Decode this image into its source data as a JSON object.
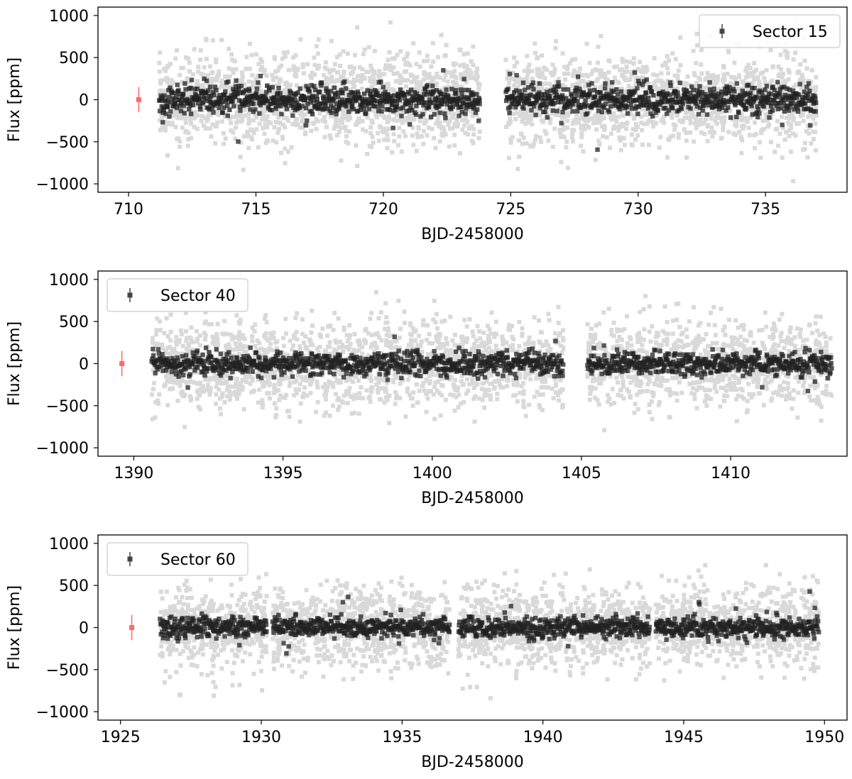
{
  "chart_data": [
    {
      "type": "scatter",
      "xlabel": "BJD-2458000",
      "ylabel": "Flux [ppm]",
      "xlim": [
        708.8,
        738.2
      ],
      "ylim": [
        -1100,
        1100
      ],
      "xticks": [
        710,
        715,
        720,
        725,
        730,
        735
      ],
      "yticks": [
        -1000,
        -500,
        0,
        500,
        1000
      ],
      "legend": {
        "label": "Sector 15",
        "placement": "top-right"
      },
      "segments": [
        [
          711.2,
          723.8
        ],
        [
          724.8,
          737.0
        ]
      ],
      "raw_scatter_ppm": 270,
      "binned_scatter_ppm": 85,
      "binned_count_per_day": 55,
      "error_bar": {
        "x": 710.4,
        "y": 0,
        "yerr": 150
      },
      "colors": {
        "raw": "#d9d9d9",
        "binned": "#222222",
        "error_bar": "#ff6b6b"
      }
    },
    {
      "type": "scatter",
      "xlabel": "BJD-2458000",
      "ylabel": "Flux [ppm]",
      "xlim": [
        1388.8,
        1413.9
      ],
      "ylim": [
        -1100,
        1100
      ],
      "xticks": [
        1390,
        1395,
        1400,
        1405,
        1410
      ],
      "yticks": [
        -1000,
        -500,
        0,
        500,
        1000
      ],
      "legend": {
        "label": "Sector 40",
        "placement": "top-left"
      },
      "segments": [
        [
          1390.6,
          1404.4
        ],
        [
          1405.2,
          1413.4
        ]
      ],
      "raw_scatter_ppm": 260,
      "binned_scatter_ppm": 70,
      "binned_count_per_day": 60,
      "error_bar": {
        "x": 1389.6,
        "y": 0,
        "yerr": 150
      },
      "colors": {
        "raw": "#d9d9d9",
        "binned": "#222222",
        "error_bar": "#ff6b6b"
      }
    },
    {
      "type": "scatter",
      "xlabel": "BJD-2458000",
      "ylabel": "Flux [ppm]",
      "xlim": [
        1924.2,
        1950.8
      ],
      "ylim": [
        -1100,
        1100
      ],
      "xticks": [
        1925,
        1930,
        1935,
        1940,
        1945,
        1950
      ],
      "yticks": [
        -1000,
        -500,
        0,
        500,
        1000
      ],
      "legend": {
        "label": "Sector 60",
        "placement": "top-left"
      },
      "segments": [
        [
          1926.4,
          1930.2
        ],
        [
          1930.4,
          1936.7
        ],
        [
          1937.0,
          1943.8
        ],
        [
          1944.0,
          1949.8
        ]
      ],
      "raw_scatter_ppm": 240,
      "binned_scatter_ppm": 60,
      "binned_count_per_day": 60,
      "error_bar": {
        "x": 1925.4,
        "y": 0,
        "yerr": 150
      },
      "colors": {
        "raw": "#d9d9d9",
        "binned": "#222222",
        "error_bar": "#ff6b6b"
      }
    }
  ]
}
